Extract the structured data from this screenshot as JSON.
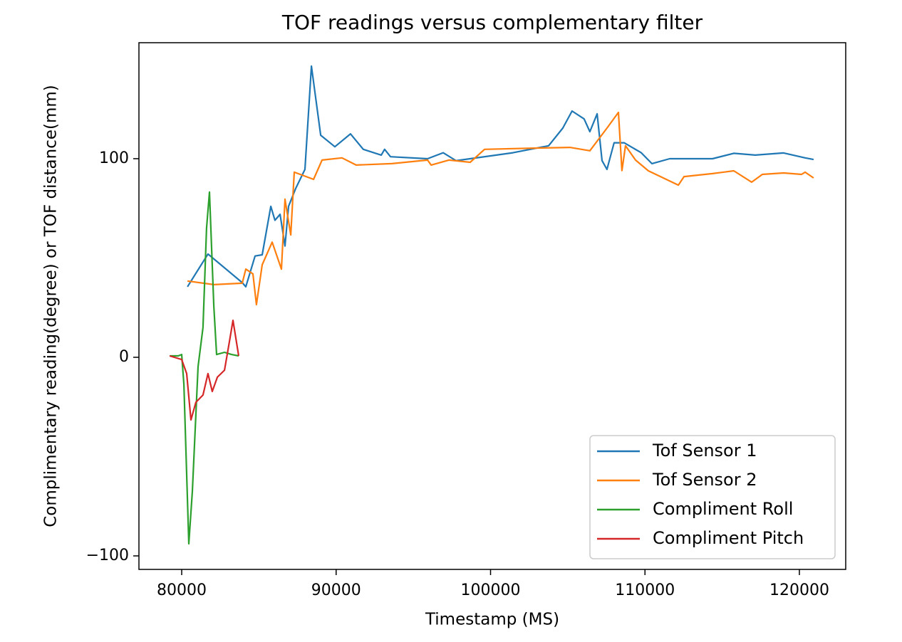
{
  "chart_data": {
    "type": "line",
    "title": "TOF readings versus complementary filter",
    "x_label": "Timestamp (MS)",
    "y_label": "Complimentary reading(degree) or TOF distance(mm)",
    "xlim": [
      77230,
      123000
    ],
    "ylim": [
      -106.8,
      158.4
    ],
    "xticks": [
      80000,
      90000,
      100000,
      110000,
      120000
    ],
    "yticks": [
      {
        "value": -100,
        "label": "−100"
      },
      0,
      100
    ],
    "legend": "lower right",
    "series": [
      {
        "name": "Tof Sensor 1",
        "color": "#1f77b4",
        "x": [
          80370,
          81700,
          83920,
          84150,
          84750,
          85210,
          85770,
          86040,
          86370,
          86690,
          86920,
          87380,
          87980,
          88400,
          89000,
          89920,
          90930,
          91760,
          92920,
          93140,
          93520,
          95920,
          96930,
          97760,
          98680,
          101450,
          103760,
          104680,
          105280,
          106060,
          106430,
          106900,
          107220,
          107540,
          108000,
          108650,
          109760,
          110450,
          111600,
          114370,
          115750,
          117140,
          118980,
          120370,
          120920
        ],
        "values": [
          35.5,
          52,
          37.6,
          35.5,
          51,
          51.6,
          76,
          69,
          72,
          56,
          76,
          85,
          94.6,
          146.6,
          111.8,
          106,
          112.5,
          104.7,
          101.8,
          104.7,
          101,
          100,
          103,
          99,
          100,
          103,
          106.5,
          115.4,
          124,
          120,
          113.6,
          122.6,
          99,
          94.6,
          108,
          108,
          103,
          97.5,
          100,
          100,
          102.7,
          101.8,
          102.9,
          100.4,
          99.6
        ]
      },
      {
        "name": "Tof Sensor 2",
        "color": "#ff7f0e",
        "x": [
          80370,
          82080,
          83920,
          84150,
          84610,
          84840,
          85210,
          85860,
          86460,
          86690,
          87060,
          87290,
          88540,
          89090,
          90380,
          91300,
          93610,
          95920,
          96150,
          97300,
          98680,
          99610,
          103300,
          105140,
          106430,
          107540,
          108280,
          108510,
          108740,
          109390,
          110220,
          112160,
          112530,
          114370,
          115750,
          116910,
          117600,
          118980,
          120140,
          120370,
          120920
        ],
        "values": [
          38.4,
          36.6,
          37.3,
          44.4,
          42,
          26.5,
          46.6,
          58,
          44.4,
          79.6,
          61.6,
          93.2,
          89.6,
          99.3,
          100.4,
          96.8,
          97.5,
          99.3,
          96.8,
          99.3,
          98.2,
          104.7,
          105.4,
          105.7,
          104,
          115.4,
          123.3,
          94,
          106.5,
          99.3,
          93.9,
          86.7,
          91,
          92.5,
          93.9,
          88.2,
          92.1,
          92.8,
          92.1,
          93.2,
          90.3
        ]
      },
      {
        "name": "Compliment Roll",
        "color": "#2ca02c",
        "x": [
          79220,
          79770,
          80000,
          80140,
          80460,
          80690,
          81060,
          81380,
          81610,
          81800,
          82080,
          82260,
          82770,
          83230,
          83690
        ],
        "values": [
          0.7,
          0.7,
          1.4,
          -13.6,
          -93.9,
          -67.4,
          -4.7,
          15,
          65,
          83.2,
          25.8,
          1.4,
          2.5,
          1.4,
          0.7
        ]
      },
      {
        "name": "Compliment Pitch",
        "color": "#d62728",
        "x": [
          79220,
          80000,
          80320,
          80600,
          80920,
          81380,
          81700,
          81980,
          82310,
          82770,
          83090,
          83320,
          83690
        ],
        "values": [
          0.7,
          -1.1,
          -8.2,
          -31.5,
          -22.6,
          -19,
          -8.2,
          -17.2,
          -10,
          -6.5,
          7.9,
          18.6,
          0.7
        ]
      }
    ]
  }
}
